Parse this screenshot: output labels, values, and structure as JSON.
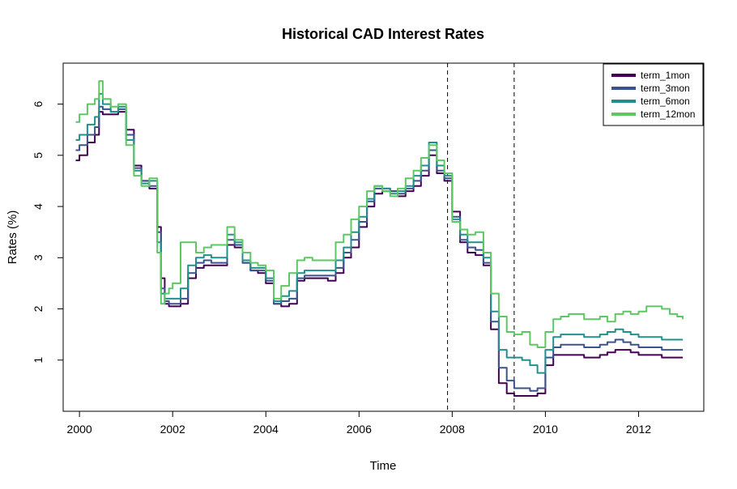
{
  "chart_data": {
    "type": "line",
    "title": "Historical CAD Interest Rates",
    "xlabel": "Time",
    "ylabel": "Rates (%)",
    "xlim": [
      1999.65,
      2013.4
    ],
    "ylim": [
      0.0,
      6.8
    ],
    "x_ticks": [
      2000,
      2002,
      2004,
      2006,
      2008,
      2010,
      2012
    ],
    "y_ticks": [
      1,
      2,
      3,
      4,
      5,
      6
    ],
    "grid": false,
    "legend_position": "top-right",
    "vlines": [
      2007.9,
      2009.33
    ],
    "x": [
      1999.92,
      2000.0,
      2000.17,
      2000.33,
      2000.42,
      2000.5,
      2000.67,
      2000.83,
      2001.0,
      2001.17,
      2001.33,
      2001.5,
      2001.67,
      2001.75,
      2001.83,
      2001.92,
      2002.0,
      2002.17,
      2002.33,
      2002.5,
      2002.67,
      2002.83,
      2003.0,
      2003.17,
      2003.33,
      2003.5,
      2003.67,
      2003.83,
      2004.0,
      2004.17,
      2004.33,
      2004.5,
      2004.67,
      2004.83,
      2005.0,
      2005.17,
      2005.33,
      2005.5,
      2005.67,
      2005.83,
      2006.0,
      2006.17,
      2006.33,
      2006.5,
      2006.67,
      2006.83,
      2007.0,
      2007.17,
      2007.33,
      2007.5,
      2007.67,
      2007.83,
      2008.0,
      2008.17,
      2008.33,
      2008.5,
      2008.67,
      2008.83,
      2009.0,
      2009.17,
      2009.33,
      2009.5,
      2009.67,
      2009.83,
      2010.0,
      2010.17,
      2010.33,
      2010.5,
      2010.67,
      2010.83,
      2011.0,
      2011.17,
      2011.33,
      2011.5,
      2011.67,
      2011.83,
      2012.0,
      2012.17,
      2012.33,
      2012.5,
      2012.67,
      2012.83,
      2012.95
    ],
    "series": [
      {
        "name": "term_1mon",
        "color": "#440154",
        "values": [
          4.9,
          5.0,
          5.25,
          5.4,
          5.85,
          5.8,
          5.8,
          5.85,
          5.5,
          4.8,
          4.5,
          4.35,
          3.6,
          2.6,
          2.1,
          2.05,
          2.05,
          2.1,
          2.6,
          2.8,
          2.85,
          2.85,
          2.85,
          3.25,
          3.2,
          2.9,
          2.75,
          2.7,
          2.5,
          2.1,
          2.05,
          2.1,
          2.55,
          2.6,
          2.6,
          2.6,
          2.55,
          2.7,
          3.0,
          3.2,
          3.6,
          4.0,
          4.25,
          4.3,
          4.3,
          4.2,
          4.3,
          4.4,
          4.6,
          5.0,
          4.65,
          4.5,
          3.9,
          3.3,
          3.1,
          3.05,
          2.85,
          1.6,
          0.55,
          0.35,
          0.3,
          0.3,
          0.3,
          0.35,
          0.9,
          1.1,
          1.1,
          1.1,
          1.1,
          1.05,
          1.05,
          1.1,
          1.15,
          1.2,
          1.2,
          1.15,
          1.1,
          1.1,
          1.1,
          1.05,
          1.05,
          1.05,
          1.05
        ]
      },
      {
        "name": "term_3mon",
        "color": "#3b528b",
        "values": [
          5.1,
          5.2,
          5.4,
          5.55,
          5.95,
          5.9,
          5.85,
          5.9,
          5.4,
          4.75,
          4.5,
          4.4,
          3.5,
          2.4,
          2.15,
          2.1,
          2.1,
          2.2,
          2.7,
          2.9,
          2.95,
          2.9,
          2.9,
          3.35,
          3.25,
          2.9,
          2.75,
          2.75,
          2.55,
          2.1,
          2.15,
          2.2,
          2.6,
          2.65,
          2.65,
          2.65,
          2.65,
          2.8,
          3.1,
          3.35,
          3.7,
          4.1,
          4.35,
          4.35,
          4.3,
          4.25,
          4.35,
          4.5,
          4.7,
          5.1,
          4.7,
          4.55,
          3.8,
          3.35,
          3.2,
          3.15,
          2.9,
          1.75,
          0.85,
          0.6,
          0.45,
          0.45,
          0.4,
          0.45,
          1.05,
          1.25,
          1.3,
          1.3,
          1.3,
          1.25,
          1.25,
          1.3,
          1.35,
          1.4,
          1.35,
          1.3,
          1.25,
          1.25,
          1.25,
          1.2,
          1.2,
          1.2,
          1.2
        ]
      },
      {
        "name": "term_6mon",
        "color": "#21908d",
        "values": [
          5.3,
          5.4,
          5.6,
          5.75,
          6.2,
          6.0,
          5.85,
          5.95,
          5.3,
          4.7,
          4.45,
          4.5,
          3.3,
          2.3,
          2.2,
          2.2,
          2.2,
          2.4,
          2.85,
          3.0,
          3.05,
          3.0,
          3.0,
          3.45,
          3.3,
          2.95,
          2.8,
          2.8,
          2.6,
          2.15,
          2.25,
          2.35,
          2.7,
          2.75,
          2.75,
          2.75,
          2.75,
          2.95,
          3.2,
          3.5,
          3.8,
          4.15,
          4.4,
          4.35,
          4.25,
          4.3,
          4.4,
          4.6,
          4.8,
          5.25,
          4.8,
          4.6,
          3.75,
          3.45,
          3.3,
          3.3,
          3.0,
          1.95,
          1.2,
          1.05,
          1.05,
          1.0,
          0.9,
          0.75,
          1.2,
          1.45,
          1.5,
          1.5,
          1.5,
          1.45,
          1.45,
          1.5,
          1.55,
          1.6,
          1.55,
          1.5,
          1.45,
          1.45,
          1.45,
          1.4,
          1.4,
          1.4,
          1.4
        ]
      },
      {
        "name": "term_12mon",
        "color": "#5dc863",
        "values": [
          5.65,
          5.8,
          6.0,
          6.1,
          6.45,
          6.1,
          5.95,
          6.0,
          5.2,
          4.6,
          4.4,
          4.55,
          3.1,
          2.1,
          2.3,
          2.4,
          2.5,
          3.3,
          3.3,
          3.1,
          3.2,
          3.25,
          3.25,
          3.6,
          3.35,
          3.1,
          2.9,
          2.85,
          2.75,
          2.2,
          2.45,
          2.7,
          2.95,
          3.0,
          2.95,
          2.95,
          2.95,
          3.3,
          3.45,
          3.75,
          4.0,
          4.3,
          4.4,
          4.3,
          4.2,
          4.35,
          4.55,
          4.7,
          4.95,
          5.2,
          4.9,
          4.65,
          3.7,
          3.55,
          3.45,
          3.5,
          3.1,
          2.3,
          1.85,
          1.55,
          1.5,
          1.55,
          1.3,
          1.25,
          1.55,
          1.8,
          1.85,
          1.9,
          1.9,
          1.8,
          1.8,
          1.85,
          1.75,
          1.9,
          1.95,
          1.9,
          1.95,
          2.05,
          2.05,
          2.0,
          1.9,
          1.85,
          1.8
        ]
      }
    ]
  }
}
